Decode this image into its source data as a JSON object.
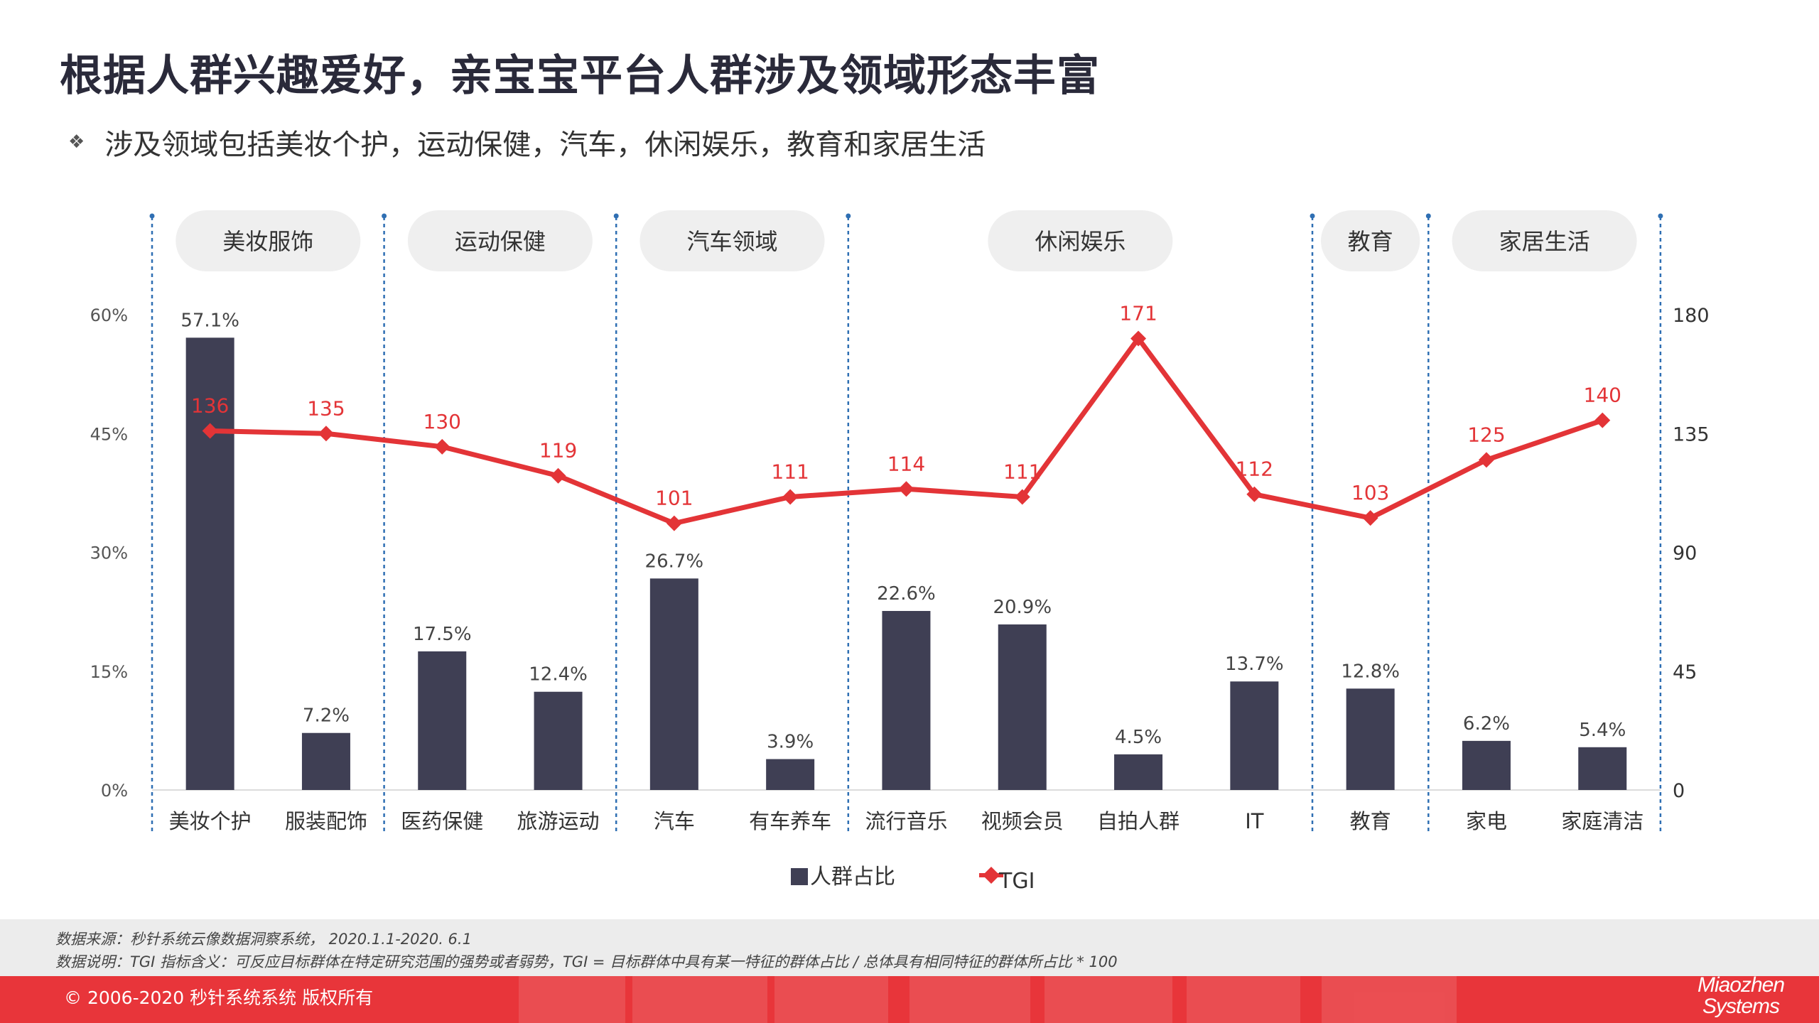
{
  "page": {
    "title": "根据人群兴趣爱好，亲宝宝平台人群涉及领域形态丰富",
    "bullet": "涉及领域包括美妆个护，运动保健，汽车，休闲娱乐，教育和家居生活"
  },
  "chart_data": {
    "type": "bar",
    "categories": [
      "美妆个护",
      "服装配饰",
      "医药保健",
      "旅游运动",
      "汽车",
      "有车养车",
      "流行音乐",
      "视频会员",
      "自拍人群",
      "IT",
      "教育",
      "家电",
      "家庭清洁"
    ],
    "groups": [
      {
        "label": "美妆服饰",
        "count": 2
      },
      {
        "label": "运动保健",
        "count": 2
      },
      {
        "label": "汽车领域",
        "count": 2
      },
      {
        "label": "休闲娱乐",
        "count": 4
      },
      {
        "label": "教育",
        "count": 1
      },
      {
        "label": "家居生活",
        "count": 2
      }
    ],
    "series": [
      {
        "name": "人群占比",
        "kind": "bar",
        "axis": "left",
        "values": [
          57.1,
          7.2,
          17.5,
          12.4,
          26.7,
          3.9,
          22.6,
          20.9,
          4.5,
          13.7,
          12.8,
          6.2,
          5.4
        ],
        "labels": [
          "57.1%",
          "7.2%",
          "17.5%",
          "12.4%",
          "26.7%",
          "3.9%",
          "22.6%",
          "20.9%",
          "4.5%",
          "13.7%",
          "12.8%",
          "6.2%",
          "5.4%"
        ]
      },
      {
        "name": "TGI",
        "kind": "line",
        "axis": "right",
        "values": [
          136,
          135,
          130,
          119,
          101,
          111,
          114,
          111,
          171,
          112,
          103,
          125,
          140
        ],
        "labels": [
          "136",
          "135",
          "130",
          "119",
          "101",
          "111",
          "114",
          "111",
          "171",
          "112",
          "103",
          "125",
          "140"
        ]
      }
    ],
    "yaxis_left": {
      "min": 0,
      "max": 60,
      "ticks": [
        0,
        15,
        30,
        45,
        60
      ],
      "tick_labels": [
        "0%",
        "15%",
        "30%",
        "45%",
        "60%"
      ]
    },
    "yaxis_right": {
      "min": 0,
      "max": 180,
      "ticks": [
        0,
        45,
        90,
        135,
        180
      ],
      "tick_labels": [
        "0",
        "45",
        "90",
        "135",
        "180"
      ]
    },
    "legend": {
      "position": "bottom",
      "bar_label": "人群占比",
      "line_label": "TGI"
    },
    "colors": {
      "bar": "#3f3f54",
      "line": "#e33437",
      "divider": "#2f6fb3",
      "group_bg": "#efefef"
    }
  },
  "footer": {
    "source": "数据来源：秒针系统云像数据洞察系统， 2020.1.1-2020. 6.1",
    "note": "数据说明：TGI 指标含义：可反应目标群体在特定研究范围的强势或者弱势，TGI = 目标群体中具有某一特征的群体占比 / 总体具有相同特征的群体所占比 * 100",
    "copyright": "© 2006-2020 秒针系统系统 版权所有",
    "logo_line1": "Miaozhen",
    "logo_line2": "Systems"
  }
}
